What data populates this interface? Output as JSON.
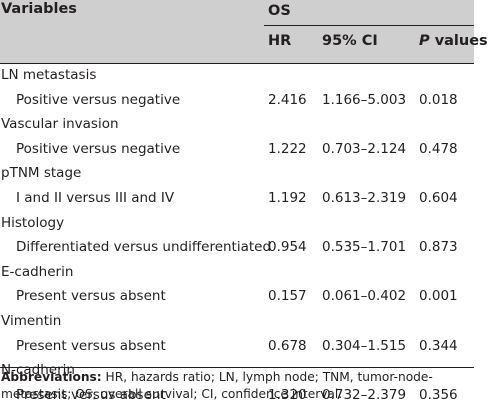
{
  "header": {
    "variables": "Variables",
    "group": "OS",
    "hr": "HR",
    "ci": "95% CI",
    "p_italic": "P",
    "p_rest": " values"
  },
  "rows": [
    {
      "group": "LN metastasis",
      "label": "Positive versus negative",
      "hr": "2.416",
      "ci": "1.166–5.003",
      "p": "0.018"
    },
    {
      "group": "Vascular invasion",
      "label": "Positive versus negative",
      "hr": "1.222",
      "ci": "0.703–2.124",
      "p": "0.478"
    },
    {
      "group": "pTNM stage",
      "label": "I and II versus III and IV",
      "hr": "1.192",
      "ci": "0.613–2.319",
      "p": "0.604"
    },
    {
      "group": "Histology",
      "label": "Differentiated versus undifferentiated",
      "hr": "0.954",
      "ci": "0.535–1.701",
      "p": "0.873"
    },
    {
      "group": "E-cadherin",
      "label": "Present versus absent",
      "hr": "0.157",
      "ci": "0.061–0.402",
      "p": "0.001"
    },
    {
      "group": "Vimentin",
      "label": "Present versus absent",
      "hr": "0.678",
      "ci": "0.304–1.515",
      "p": "0.344"
    },
    {
      "group": "N-cadherin",
      "label": "Present versus absent",
      "hr": "1.320",
      "ci": "0.732–2.379",
      "p": "0.356"
    }
  ],
  "footnote": {
    "title": "Abbreviations:",
    "text": " HR, hazards ratio; LN, lymph node; TNM, tumor-node-metastasis; OS, overall survival; CI, confidence interval."
  }
}
